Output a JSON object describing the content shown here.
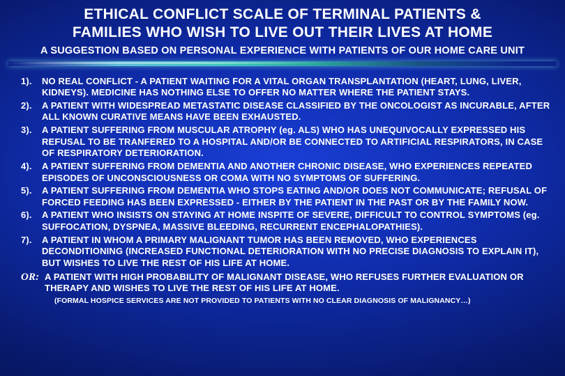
{
  "title_line1": "ETHICAL CONFLICT SCALE  OF TERMINAL PATIENTS &",
  "title_line2": "FAMILIES WHO WISH TO LIVE OUT THEIR LIVES AT HOME",
  "subtitle": "A SUGGESTION BASED ON PERSONAL EXPERIENCE WITH PATIENTS OF OUR HOME CARE UNIT",
  "items": [
    {
      "num": "1).",
      "text": "NO REAL CONFLICT -  A PATIENT WAITING FOR A VITAL ORGAN TRANSPLANTATION (HEART, LUNG, LIVER, KIDNEYS).  MEDICINE HAS NOTHING ELSE TO OFFER  NO MATTER WHERE THE PATIENT STAYS."
    },
    {
      "num": "2).",
      "text": "A PATIENT WITH WIDESPREAD METASTATIC DISEASE CLASSIFIED BY THE ONCOLOGIST AS  INCURABLE, AFTER  ALL KNOWN CURATIVE MEANS HAVE BEEN EXHAUSTED."
    },
    {
      "num": "3).",
      "text": "A PATIENT SUFFERING FROM MUSCULAR ATROPHY (eg. ALS) WHO HAS UNEQUIVOCALLY EXPRESSED HIS REFUSAL TO BE TRANFERED TO A HOSPITAL AND/OR BE CONNECTED TO ARTIFICIAL RESPIRATORS, IN CASE OF RESPIRATORY DETERIORATION."
    },
    {
      "num": "4).",
      "text": "A PATIENT SUFFERING FROM DEMENTIA AND ANOTHER CHRONIC DISEASE, WHO EXPERIENCES REPEATED EPISODES OF UNCONSCIOUSNESS OR COMA WITH NO SYMPTOMS OF SUFFERING."
    },
    {
      "num": "5).",
      "text": "A PATIENT SUFFERING FROM DEMENTIA WHO STOPS EATING AND/OR DOES NOT COMMUNICATE; REFUSAL OF FORCED FEEDING HAS BEEN EXPRESSED - EITHER BY THE PATIENT IN THE PAST OR BY THE FAMILY NOW."
    },
    {
      "num": "6).",
      "text": "A PATIENT WHO INSISTS ON STAYING AT HOME INSPITE OF SEVERE, DIFFICULT TO CONTROL SYMPTOMS (eg. SUFFOCATION, DYSPNEA, MASSIVE BLEEDING, RECURRENT ENCEPHALOPATHIES)."
    },
    {
      "num": "7).",
      "text": " A PATIENT IN WHOM A PRIMARY MALIGNANT TUMOR HAS BEEN REMOVED, WHO EXPERIENCES DECONDITIONING (INCREASED FUNCTIONAL DETERIORATION WITH NO PRECISE DIAGNOSIS TO EXPLAIN IT), BUT WISHES TO LIVE THE REST OF HIS LIFE AT HOME."
    }
  ],
  "or_label": "OR:",
  "or_text": "A PATIENT WITH HIGH PROBABILITY OF MALIGNANT DISEASE, WHO REFUSES FURTHER EVALUATION OR THERAPY AND WISHES TO LIVE THE REST OF HIS LIFE AT HOME.",
  "footnote": "(FORMAL HOSPICE SERVICES ARE NOT PROVIDED TO PATIENTS WITH NO CLEAR DIAGNOSIS OF MALIGNANCY…)",
  "colors": {
    "text": "#ffffff",
    "bg_center": "#1a3fd8",
    "bg_edge": "#030b3d",
    "divider_teal": "#46c7c0"
  },
  "fonts": {
    "body": "Arial",
    "title_pt": 21,
    "subtitle_pt": 14.5,
    "item_pt": 13,
    "footnote_pt": 10.5,
    "or_label_family": "Times New Roman",
    "or_label_pt": 15
  }
}
